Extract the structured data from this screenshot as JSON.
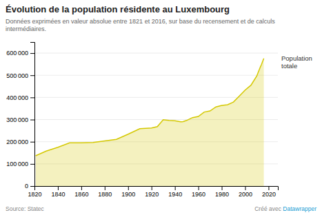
{
  "chart_data": {
    "type": "area",
    "title": "Évolution de la population résidente au Luxembourg",
    "subtitle": "Données exprimées en valeur absolue entre 1821 et 2016, sur base du recensement et de calculs intermédiaires.",
    "annotations": [
      "Source: Statec",
      "Créé avec ",
      "Datawrapper"
    ],
    "x": [
      1821,
      1830,
      1840,
      1850,
      1860,
      1870,
      1880,
      1890,
      1900,
      1910,
      1920,
      1925,
      1930,
      1935,
      1940,
      1945,
      1947,
      1950,
      1955,
      1960,
      1965,
      1970,
      1975,
      1980,
      1985,
      1990,
      1995,
      2000,
      2005,
      2010,
      2011,
      2012,
      2013,
      2014,
      2015,
      2016
    ],
    "series": [
      {
        "name": "Population\ntotale",
        "color": "#d4c800",
        "values": [
          136700,
          158000,
          175000,
          195000,
          195000,
          197000,
          204000,
          211000,
          234000,
          259000,
          262000,
          268000,
          299000,
          296000,
          295000,
          290000,
          291000,
          296000,
          309000,
          314000,
          334000,
          339000,
          357000,
          364000,
          367000,
          379000,
          406000,
          433000,
          455000,
          497000,
          511000,
          524000,
          537000,
          549000,
          563000,
          576000
        ]
      }
    ],
    "xlim": [
      1820,
      2028
    ],
    "ylim": [
      0,
      650000
    ],
    "xticks": [
      1820,
      1840,
      1860,
      1880,
      1900,
      1920,
      1940,
      1960,
      1980,
      2000,
      2020
    ],
    "yticks": [
      0,
      {
        "value": 100000,
        "label": "100 000"
      },
      {
        "value": 200000,
        "label": "200 000"
      },
      {
        "value": 300000,
        "label": "300 000"
      },
      {
        "value": 400000,
        "label": "400 000"
      },
      {
        "value": 500000,
        "label": "500 000"
      },
      {
        "value": 600000,
        "label": "600 000"
      }
    ],
    "grid": true
  }
}
